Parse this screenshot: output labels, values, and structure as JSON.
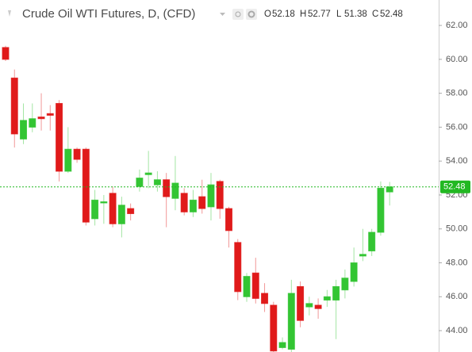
{
  "chart_data": {
    "type": "candlestick",
    "title": "Crude Oil WTI Futures, D, (CFD)",
    "ohlc_legend": [
      {
        "label": "O",
        "value": 52.18
      },
      {
        "label": "H",
        "value": 52.77
      },
      {
        "label": "L",
        "value": 51.38
      },
      {
        "label": "C",
        "value": 52.48
      }
    ],
    "up_color": "#33c533",
    "down_color": "#e01a1a",
    "open": [
      60.7,
      58.9,
      55.3,
      56.0,
      56.6,
      56.8,
      57.4,
      53.4,
      54.7,
      54.7,
      50.6,
      51.6,
      52.1,
      50.3,
      51.2,
      52.5,
      53.2,
      52.6,
      52.9,
      51.8,
      52.1,
      51.0,
      51.9,
      51.3,
      52.8,
      51.2,
      49.2,
      46.0,
      47.4,
      46.2,
      45.5,
      43.0,
      42.9,
      46.6,
      45.4,
      45.5,
      45.8,
      45.8,
      46.4,
      46.9,
      48.4,
      48.7,
      49.8,
      52.18
    ],
    "high": [
      60.8,
      59.4,
      57.4,
      57.4,
      58.0,
      57.3,
      57.6,
      56.0,
      54.8,
      54.8,
      52.3,
      52.0,
      52.5,
      51.9,
      51.5,
      53.5,
      54.6,
      53.4,
      53.3,
      54.3,
      52.4,
      52.3,
      52.9,
      53.3,
      52.9,
      51.3,
      49.4,
      47.4,
      48.3,
      46.8,
      45.7,
      43.6,
      47.0,
      46.9,
      46.0,
      45.9,
      46.4,
      47.0,
      47.6,
      48.9,
      50.0,
      50.0,
      52.8,
      52.77
    ],
    "low": [
      59.9,
      54.8,
      55.0,
      55.7,
      55.8,
      55.8,
      52.8,
      53.3,
      53.9,
      50.2,
      50.2,
      50.3,
      50.1,
      49.5,
      50.5,
      52.2,
      52.4,
      52.2,
      50.1,
      51.1,
      50.8,
      50.7,
      50.9,
      50.5,
      50.6,
      48.9,
      45.8,
      45.7,
      45.6,
      45.1,
      42.6,
      42.9,
      42.7,
      44.2,
      44.9,
      44.7,
      45.4,
      43.5,
      45.9,
      46.6,
      48.1,
      48.4,
      49.6,
      51.38
    ],
    "close": [
      60.0,
      55.6,
      56.4,
      56.5,
      56.5,
      56.7,
      53.4,
      54.7,
      54.1,
      50.4,
      51.7,
      51.6,
      50.3,
      51.4,
      50.9,
      53.0,
      53.3,
      52.9,
      51.9,
      52.7,
      51.0,
      51.7,
      51.2,
      52.6,
      51.2,
      49.9,
      46.3,
      47.2,
      45.9,
      45.6,
      42.8,
      43.3,
      46.2,
      44.6,
      45.6,
      45.3,
      46.0,
      46.6,
      47.1,
      48.0,
      48.5,
      49.8,
      52.4,
      52.48
    ],
    "last_price": 52.48,
    "last_price_color": "#22b822",
    "ylim": [
      42.74,
      63.5
    ],
    "yticks": [
      {
        "value": 44,
        "label": "44.00"
      },
      {
        "value": 46,
        "label": "46.00"
      },
      {
        "value": 48,
        "label": "48.00"
      },
      {
        "value": 50,
        "label": "50.00"
      },
      {
        "value": 52,
        "label": "52.00"
      },
      {
        "value": 54,
        "label": "54.00"
      },
      {
        "value": 56,
        "label": "56.00"
      },
      {
        "value": 58,
        "label": "58.00"
      },
      {
        "value": 60,
        "label": "60.00"
      },
      {
        "value": 62,
        "label": "62.00"
      }
    ]
  }
}
